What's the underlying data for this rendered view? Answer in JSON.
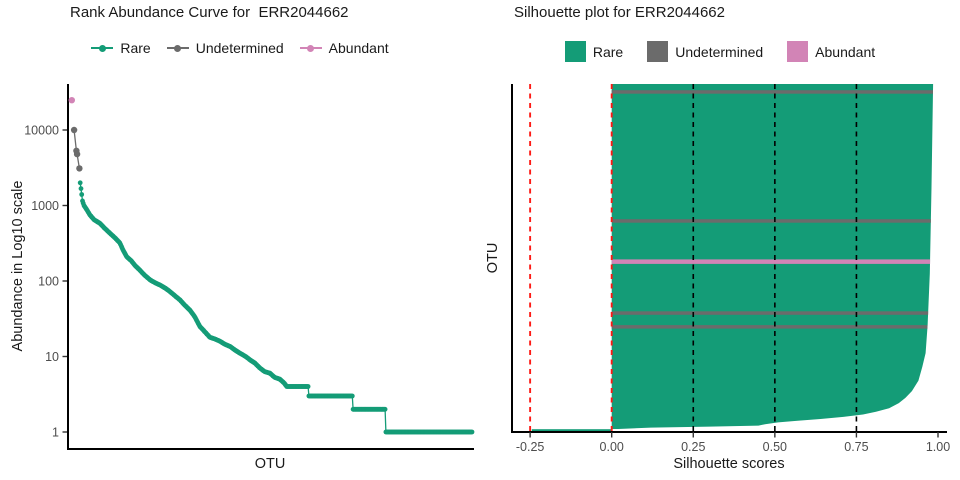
{
  "colors": {
    "rare": "#149c77",
    "undetermined": "#6b6b6b",
    "abundant": "#d284b6",
    "red_line": "#fd1a15",
    "black_line": "#000000",
    "tick_label": "#4d4d4d",
    "axis": "#000000"
  },
  "chart_data": [
    {
      "type": "scatter",
      "title": "Rank Abundance Curve for  ERR2044662",
      "xlabel": "OTU",
      "ylabel": "Abundance in Log10 scale",
      "yscale": "log10",
      "x_range": [
        0,
        530
      ],
      "ylim": [
        1,
        30000
      ],
      "grid": false,
      "legend_position": "top",
      "yticks": [
        {
          "value": 1,
          "label": "1"
        },
        {
          "value": 10,
          "label": "10"
        },
        {
          "value": 100,
          "label": "100"
        },
        {
          "value": 1000,
          "label": "1000"
        },
        {
          "value": 10000,
          "label": "10000"
        }
      ],
      "legend": [
        {
          "label": "Rare",
          "color_key": "rare"
        },
        {
          "label": "Undetermined",
          "color_key": "undetermined"
        },
        {
          "label": "Abundant",
          "color_key": "abundant"
        }
      ],
      "series": [
        {
          "name": "Rare",
          "color_key": "rare",
          "dot_r": 2.4,
          "interpolate": true,
          "points": [
            [
              16,
              2000
            ],
            [
              18,
              1400
            ],
            [
              19,
              1150
            ],
            [
              21,
              1000
            ],
            [
              24,
              900
            ],
            [
              29,
              745
            ],
            [
              34,
              650
            ],
            [
              42,
              580
            ],
            [
              48,
              500
            ],
            [
              55,
              430
            ],
            [
              62,
              370
            ],
            [
              68,
              320
            ],
            [
              72,
              260
            ],
            [
              77,
              210
            ],
            [
              83,
              185
            ],
            [
              88,
              160
            ],
            [
              94,
              140
            ],
            [
              101,
              118
            ],
            [
              108,
              103
            ],
            [
              114,
              95
            ],
            [
              121,
              88
            ],
            [
              128,
              80
            ],
            [
              134,
              72
            ],
            [
              140,
              64
            ],
            [
              147,
              56
            ],
            [
              153,
              48
            ],
            [
              160,
              41
            ],
            [
              166,
              34
            ],
            [
              173,
              25
            ],
            [
              180,
              21
            ],
            [
              186,
              18
            ],
            [
              193,
              17
            ],
            [
              199,
              16
            ],
            [
              206,
              14.5
            ],
            [
              213,
              13.5
            ],
            [
              220,
              12
            ],
            [
              226,
              11
            ],
            [
              233,
              10
            ],
            [
              239,
              9
            ],
            [
              245,
              8.2
            ],
            [
              252,
              7
            ],
            [
              258,
              6.3
            ],
            [
              265,
              6
            ],
            [
              271,
              5.3
            ],
            [
              278,
              5
            ],
            [
              284,
              4.4
            ],
            [
              287,
              4
            ],
            [
              315,
              4
            ],
            [
              316,
              3
            ],
            [
              373,
              3
            ],
            [
              374,
              2
            ],
            [
              416,
              2
            ],
            [
              417,
              1
            ],
            [
              530,
              1
            ]
          ]
        },
        {
          "name": "Undetermined",
          "color_key": "undetermined",
          "dot_r": 3.2,
          "interpolate": false,
          "points": [
            [
              8,
              10000
            ],
            [
              11,
              5300
            ],
            [
              12,
              4800
            ],
            [
              15,
              3100
            ]
          ]
        },
        {
          "name": "Abundant",
          "color_key": "abundant",
          "dot_r": 3.2,
          "interpolate": false,
          "points": [
            [
              5,
              24800
            ]
          ]
        }
      ]
    },
    {
      "type": "bar",
      "orientation": "horizontal",
      "title": "Silhouette plot for ERR2044662",
      "xlabel": "Silhouette scores",
      "ylabel": "OTU",
      "xlim": [
        -0.3,
        1.02
      ],
      "grid": false,
      "legend_position": "top",
      "xticks": [
        {
          "value": -0.25,
          "label": "-0.25"
        },
        {
          "value": 0,
          "label": "0.00"
        },
        {
          "value": 0.25,
          "label": "0.25"
        },
        {
          "value": 0.5,
          "label": "0.50"
        },
        {
          "value": 0.75,
          "label": "0.75"
        },
        {
          "value": 1,
          "label": "1.00"
        }
      ],
      "legend": [
        {
          "label": "Rare",
          "color_key": "rare"
        },
        {
          "label": "Undetermined",
          "color_key": "undetermined"
        },
        {
          "label": "Abundant",
          "color_key": "abundant"
        }
      ],
      "reference_lines": [
        {
          "x": -0.25,
          "color": "red",
          "style": "dashed"
        },
        {
          "x": 0,
          "color": "red",
          "style": "dashed"
        },
        {
          "x": 0.25,
          "color": "black",
          "style": "dashed"
        },
        {
          "x": 0.5,
          "color": "black",
          "style": "dashed"
        },
        {
          "x": 0.75,
          "color": "black",
          "style": "dashed"
        }
      ],
      "envelope": [
        [
          0,
          0.985
        ],
        [
          0.3,
          0.98
        ],
        [
          0.55,
          0.975
        ],
        [
          0.7,
          0.968
        ],
        [
          0.78,
          0.962
        ],
        [
          0.82,
          0.952
        ],
        [
          0.86,
          0.94
        ],
        [
          0.89,
          0.92
        ],
        [
          0.91,
          0.9
        ],
        [
          0.925,
          0.88
        ],
        [
          0.94,
          0.85
        ],
        [
          0.95,
          0.81
        ],
        [
          0.958,
          0.77
        ],
        [
          0.965,
          0.71
        ],
        [
          0.971,
          0.64
        ],
        [
          0.976,
          0.57
        ],
        [
          0.981,
          0.51
        ],
        [
          0.986,
          0.47
        ],
        [
          0.99,
          0.45
        ],
        [
          0.993,
          0.3
        ],
        [
          0.996,
          0.12
        ],
        [
          1,
          0.02
        ]
      ],
      "negative_tail": {
        "score_min": -0.245,
        "score_max": 0
      },
      "stripes": [
        {
          "fraction": 0.023,
          "group": "Undetermined",
          "color_key": "undetermined",
          "height": 3.5
        },
        {
          "fraction": 0.397,
          "group": "Undetermined",
          "color_key": "undetermined",
          "height": 3.5
        },
        {
          "fraction": 0.515,
          "group": "Abundant",
          "color_key": "abundant",
          "height": 4.5
        },
        {
          "fraction": 0.664,
          "group": "Undetermined",
          "color_key": "undetermined",
          "height": 3.5
        },
        {
          "fraction": 0.704,
          "group": "Undetermined",
          "color_key": "undetermined",
          "height": 3.5
        }
      ]
    }
  ]
}
